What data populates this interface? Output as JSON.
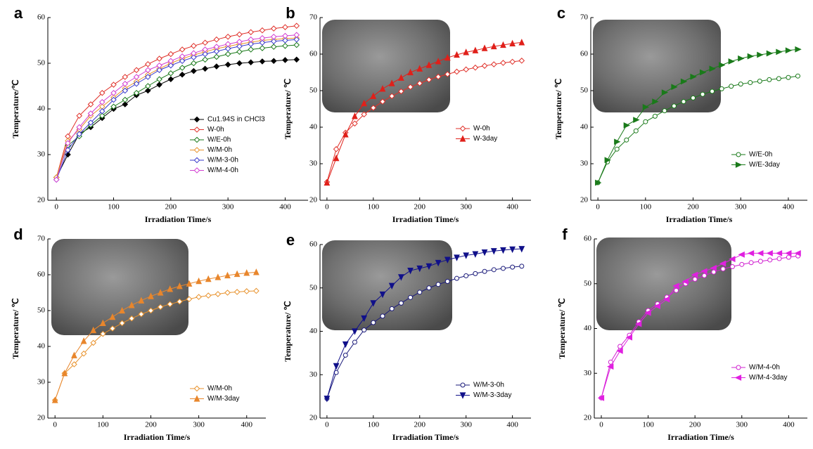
{
  "chart_data": [
    {
      "type": "line",
      "label": "a",
      "xlabel": "Irradiation Time/s",
      "ylabel": "Temperature/℃",
      "x": [
        0,
        20,
        40,
        60,
        80,
        100,
        120,
        140,
        160,
        180,
        200,
        220,
        240,
        260,
        280,
        300,
        320,
        340,
        360,
        380,
        400,
        420
      ],
      "xlim": [
        -15,
        440
      ],
      "xticks": [
        0,
        100,
        200,
        300,
        400
      ],
      "ylim": [
        20,
        60
      ],
      "yticks": [
        20,
        30,
        40,
        50,
        60
      ],
      "series": [
        {
          "name": "Cu1.94S in CHCl3",
          "color": "#000000",
          "marker": "diamond",
          "filled": true,
          "values": [
            25,
            30,
            34.5,
            36,
            38,
            40,
            41,
            43,
            44,
            45.3,
            46.5,
            47.5,
            48.3,
            48.8,
            49.3,
            49.7,
            50,
            50.2,
            50.4,
            50.5,
            50.7,
            50.8
          ]
        },
        {
          "name": "W-0h",
          "color": "#e0312a",
          "marker": "diamond",
          "filled": false,
          "values": [
            25,
            34,
            38.5,
            41,
            43.5,
            45.3,
            47,
            48.5,
            49.8,
            51,
            52,
            53,
            53.8,
            54.5,
            55.2,
            55.8,
            56.3,
            56.8,
            57.2,
            57.6,
            57.9,
            58.2
          ]
        },
        {
          "name": "W/E-0h",
          "color": "#1a7a1a",
          "marker": "diamond",
          "filled": false,
          "values": [
            25,
            32,
            34,
            36.5,
            38.5,
            40.5,
            42,
            43.5,
            45,
            46.5,
            47.8,
            49,
            50,
            50.8,
            51.4,
            52,
            52.5,
            53,
            53.3,
            53.6,
            53.8,
            54
          ]
        },
        {
          "name": "W/M-0h",
          "color": "#e8922c",
          "marker": "diamond",
          "filled": false,
          "values": [
            25,
            33,
            35.5,
            38.5,
            40.5,
            42.5,
            44.5,
            46,
            47.5,
            48.8,
            50,
            51,
            51.8,
            52.5,
            53.2,
            53.7,
            54.2,
            54.6,
            55,
            55.2,
            55.4,
            55.5
          ]
        },
        {
          "name": "W/M-3-0h",
          "color": "#3a3acb",
          "marker": "diamond",
          "filled": false,
          "values": [
            24.5,
            31,
            34.5,
            37,
            39.5,
            42,
            44,
            45.5,
            47,
            48.5,
            49.5,
            50.5,
            51.3,
            52,
            52.6,
            53.2,
            53.7,
            54.2,
            54.5,
            54.8,
            55,
            55.2
          ]
        },
        {
          "name": "W/M-4-0h",
          "color": "#d23fd2",
          "marker": "diamond",
          "filled": false,
          "values": [
            24.5,
            32.5,
            36,
            39,
            41.5,
            43.5,
            45.5,
            47,
            48.5,
            49.5,
            50.5,
            51.5,
            52.2,
            53,
            53.6,
            54.2,
            54.7,
            55.2,
            55.5,
            55.8,
            56,
            56.2
          ]
        }
      ]
    },
    {
      "type": "line",
      "label": "b",
      "xlabel": "Irradiation Time/s",
      "ylabel": "Temperature/ ℃",
      "x": [
        0,
        20,
        40,
        60,
        80,
        100,
        120,
        140,
        160,
        180,
        200,
        220,
        240,
        260,
        280,
        300,
        320,
        340,
        360,
        380,
        400,
        420
      ],
      "xlim": [
        -15,
        440
      ],
      "xticks": [
        0,
        100,
        200,
        300,
        400
      ],
      "ylim": [
        20,
        70
      ],
      "yticks": [
        20,
        30,
        40,
        50,
        60,
        70
      ],
      "series": [
        {
          "name": "W-0h",
          "color": "#e0312a",
          "marker": "diamond",
          "filled": false,
          "values": [
            25,
            34,
            38.5,
            41,
            43.5,
            45.3,
            47,
            48.5,
            49.8,
            51,
            52,
            53,
            53.8,
            54.5,
            55.2,
            55.8,
            56.3,
            56.8,
            57.2,
            57.6,
            57.9,
            58.2
          ]
        },
        {
          "name": "W-3day",
          "color": "#e0201a",
          "marker": "up",
          "filled": true,
          "values": [
            24.8,
            31.5,
            38,
            43,
            46.5,
            48.5,
            50.5,
            52,
            53.5,
            55,
            56,
            57,
            58,
            59,
            59.8,
            60.5,
            61,
            61.6,
            62.1,
            62.5,
            62.9,
            63.2
          ]
        }
      ]
    },
    {
      "type": "line",
      "label": "c",
      "xlabel": "Irradiation Time/s",
      "ylabel": "Temperature/ ℃",
      "x": [
        0,
        20,
        40,
        60,
        80,
        100,
        120,
        140,
        160,
        180,
        200,
        220,
        240,
        260,
        280,
        300,
        320,
        340,
        360,
        380,
        400,
        420
      ],
      "xlim": [
        -15,
        440
      ],
      "xticks": [
        0,
        100,
        200,
        300,
        400
      ],
      "ylim": [
        20,
        70
      ],
      "yticks": [
        20,
        30,
        40,
        50,
        60,
        70
      ],
      "series": [
        {
          "name": "W/E-0h",
          "color": "#1a7a1a",
          "marker": "circle",
          "filled": false,
          "values": [
            24.8,
            30.5,
            34,
            36.5,
            39,
            41.5,
            43,
            44.5,
            45.8,
            47,
            48,
            49,
            49.8,
            50.5,
            51.2,
            51.8,
            52.2,
            52.6,
            53,
            53.3,
            53.6,
            54
          ]
        },
        {
          "name": "W/E-3day",
          "color": "#1a7a1a",
          "marker": "right",
          "filled": true,
          "values": [
            24.8,
            31,
            36,
            40.5,
            42,
            45.5,
            47,
            49.5,
            51,
            52.5,
            53.8,
            55,
            56,
            57,
            58,
            58.8,
            59.4,
            59.8,
            60.2,
            60.6,
            61,
            61.3
          ]
        }
      ]
    },
    {
      "type": "line",
      "label": "d",
      "xlabel": "Irradiation Time/s",
      "ylabel": "Temperature/ ℃",
      "x": [
        0,
        20,
        40,
        60,
        80,
        100,
        120,
        140,
        160,
        180,
        200,
        220,
        240,
        260,
        280,
        300,
        320,
        340,
        360,
        380,
        400,
        420
      ],
      "xlim": [
        -15,
        440
      ],
      "xticks": [
        0,
        100,
        200,
        300,
        400
      ],
      "ylim": [
        20,
        70
      ],
      "yticks": [
        20,
        30,
        40,
        50,
        60,
        70
      ],
      "series": [
        {
          "name": "W/M-0h",
          "color": "#e8922c",
          "marker": "diamond",
          "filled": false,
          "values": [
            25,
            32.5,
            35,
            38,
            41,
            43.5,
            45,
            46.5,
            47.8,
            49,
            50,
            51,
            51.8,
            52.5,
            53.2,
            53.8,
            54.2,
            54.6,
            55,
            55.2,
            55.4,
            55.5
          ]
        },
        {
          "name": "W/M-3day",
          "color": "#e8862c",
          "marker": "up",
          "filled": true,
          "values": [
            25,
            32.5,
            37.5,
            41.5,
            44.5,
            46.5,
            48.2,
            50,
            51.5,
            52.8,
            54,
            55,
            56,
            56.8,
            57.5,
            58.2,
            58.8,
            59.3,
            59.8,
            60.2,
            60.5,
            60.7
          ]
        }
      ]
    },
    {
      "type": "line",
      "label": "e",
      "xlabel": "Irradiation Time/s",
      "ylabel": "Temperature/ ℃",
      "x": [
        0,
        20,
        40,
        60,
        80,
        100,
        120,
        140,
        160,
        180,
        200,
        220,
        240,
        260,
        280,
        300,
        320,
        340,
        360,
        380,
        400,
        420
      ],
      "xlim": [
        -15,
        440
      ],
      "xticks": [
        0,
        100,
        200,
        300,
        400
      ],
      "ylim": [
        20,
        60
      ],
      "yticks": [
        20,
        30,
        40,
        50,
        60
      ],
      "series": [
        {
          "name": "W/M-3-0h",
          "color": "#1a1a7a",
          "marker": "circle",
          "filled": false,
          "values": [
            24.5,
            30.5,
            34.5,
            37.5,
            40.3,
            42,
            43.5,
            45.2,
            46.5,
            47.8,
            49,
            50,
            50.8,
            51.5,
            52.2,
            52.8,
            53.3,
            53.8,
            54.2,
            54.5,
            54.8,
            55
          ]
        },
        {
          "name": "W/M-3-3day",
          "color": "#10108a",
          "marker": "down",
          "filled": true,
          "values": [
            24.5,
            32,
            37,
            40,
            43,
            46.5,
            48.5,
            50.5,
            52.5,
            54,
            54.5,
            55,
            55.8,
            56.5,
            57,
            57.5,
            57.8,
            58.2,
            58.5,
            58.7,
            58.9,
            59
          ]
        }
      ]
    },
    {
      "type": "line",
      "label": "f",
      "xlabel": "Irradiation Time/s",
      "ylabel": "Temperature/ ℃",
      "x": [
        0,
        20,
        40,
        60,
        80,
        100,
        120,
        140,
        160,
        180,
        200,
        220,
        240,
        260,
        280,
        300,
        320,
        340,
        360,
        380,
        400,
        420
      ],
      "xlim": [
        -15,
        440
      ],
      "xticks": [
        0,
        100,
        200,
        300,
        400
      ],
      "ylim": [
        20,
        60
      ],
      "yticks": [
        20,
        30,
        40,
        50,
        60
      ],
      "series": [
        {
          "name": "W/M-4-0h",
          "color": "#d020d0",
          "marker": "circle",
          "filled": false,
          "values": [
            24.5,
            32.5,
            36,
            38.5,
            41.5,
            44,
            45.5,
            47,
            48.5,
            50,
            51,
            51.8,
            52.6,
            53.3,
            53.8,
            54.3,
            54.7,
            55,
            55.3,
            55.6,
            55.9,
            56.2
          ]
        },
        {
          "name": "W/M-4-3day",
          "color": "#e020e0",
          "marker": "left",
          "filled": true,
          "values": [
            24.5,
            31.5,
            35,
            38,
            41,
            43.5,
            45,
            46.5,
            49.5,
            50.5,
            52,
            52.8,
            53.5,
            54.5,
            55.5,
            56.5,
            56.8,
            56.8,
            56.8,
            56.8,
            56.8,
            56.8
          ]
        }
      ]
    }
  ]
}
